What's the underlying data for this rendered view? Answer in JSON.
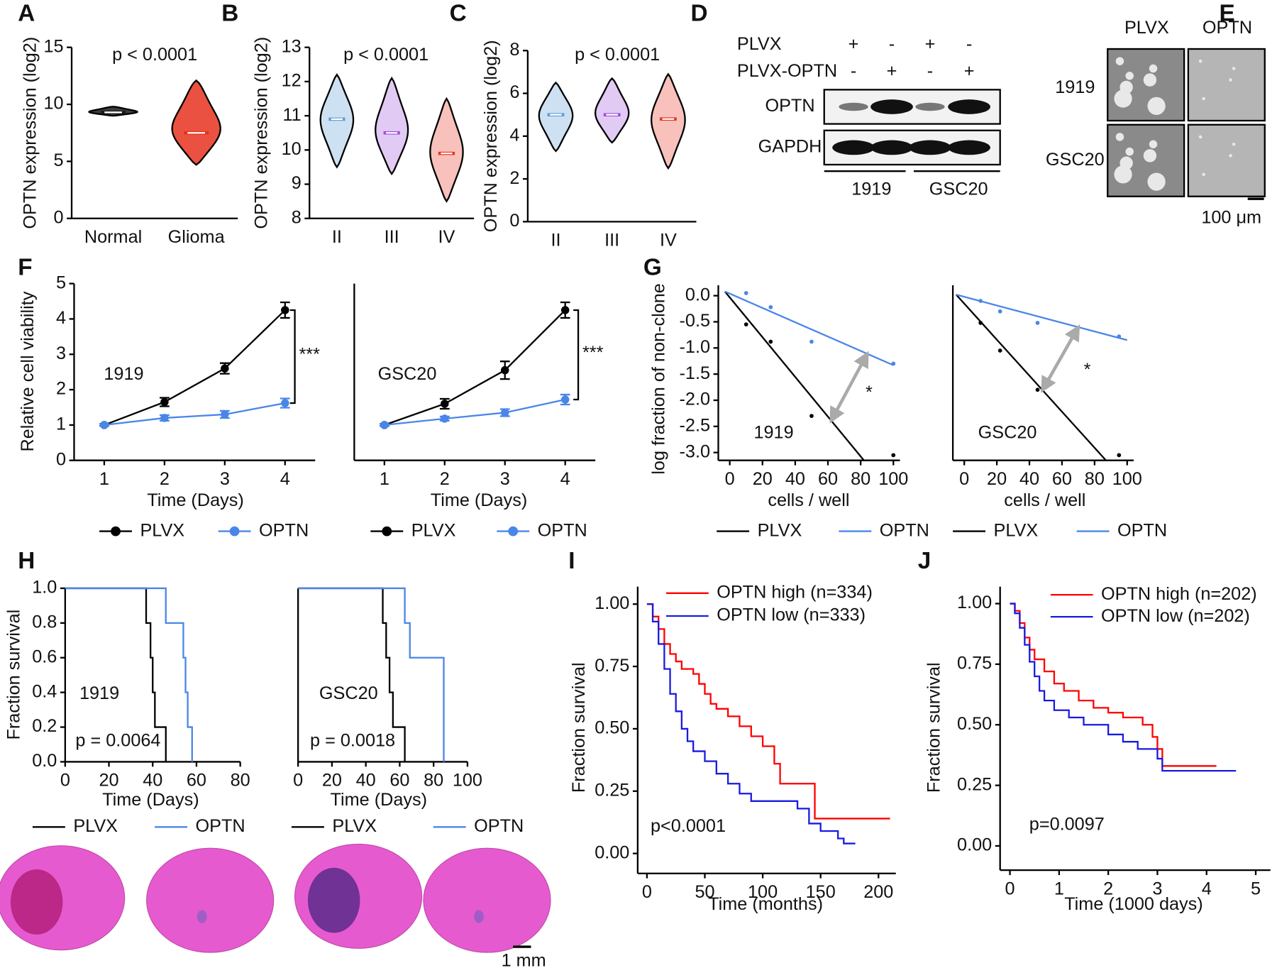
{
  "chart_data": [
    {
      "type": "violin",
      "panel": "A",
      "y_label": "OPTN expression (log2)",
      "p_value": "p < 0.0001",
      "categories": [
        "Normal",
        "Glioma"
      ],
      "min": [
        9.0,
        4.7
      ],
      "median": [
        9.3,
        7.5
      ],
      "max": [
        9.8,
        12.1
      ],
      "colors": [
        "#1a1a1a",
        "#e8321e"
      ],
      "ylim": [
        0,
        15
      ],
      "yticks": [
        0,
        5,
        10,
        15
      ]
    },
    {
      "type": "violin",
      "panel": "B",
      "y_label": "OPTN expression (log2)",
      "p_value": "p < 0.0001",
      "categories": [
        "II",
        "III",
        "IV"
      ],
      "min": [
        9.5,
        9.3,
        8.5
      ],
      "median": [
        10.9,
        10.5,
        9.9
      ],
      "max": [
        12.2,
        12.1,
        11.5
      ],
      "colors": [
        "#5b9bd5",
        "#9b4fd9",
        "#e8321e"
      ],
      "ylim": [
        8,
        13
      ],
      "yticks": [
        8,
        9,
        10,
        11,
        12,
        13
      ]
    },
    {
      "type": "violin",
      "panel": "C",
      "y_label": "OPTN expression (log2)",
      "p_value": "p < 0.0001",
      "categories": [
        "II",
        "III",
        "IV"
      ],
      "min": [
        3.3,
        3.7,
        2.5
      ],
      "median": [
        5.0,
        5.0,
        4.8
      ],
      "max": [
        6.5,
        6.7,
        6.9
      ],
      "colors": [
        "#5b9bd5",
        "#9b4fd9",
        "#e8321e"
      ],
      "ylim": [
        0,
        8
      ],
      "yticks": [
        0,
        2,
        4,
        6,
        8
      ]
    },
    {
      "type": "line",
      "panel": "F",
      "y_label": "Relative cell viability",
      "x_label": "Time (Days)",
      "label": "1919",
      "significance": "***",
      "x": [
        1,
        2,
        3,
        4
      ],
      "xlim": [
        0.5,
        4.5
      ],
      "xticks": [
        1,
        2,
        3,
        4
      ],
      "ylim": [
        0,
        5
      ],
      "yticks": [
        0,
        1,
        2,
        3,
        4,
        5
      ],
      "series": [
        {
          "name": "PLVX",
          "color": "#000000",
          "values": [
            1,
            1.65,
            2.6,
            4.25
          ],
          "errors": [
            0.03,
            0.12,
            0.15,
            0.22
          ]
        },
        {
          "name": "OPTN",
          "color": "#4a86e8",
          "values": [
            1,
            1.2,
            1.3,
            1.62
          ],
          "errors": [
            0.03,
            0.08,
            0.1,
            0.13
          ]
        }
      ]
    },
    {
      "type": "line",
      "x_label": "Time (Days)",
      "label": "GSC20",
      "significance": "***",
      "x": [
        1,
        2,
        3,
        4
      ],
      "xlim": [
        0.5,
        4.5
      ],
      "xticks": [
        1,
        2,
        3,
        4
      ],
      "ylim": [
        0,
        5
      ],
      "series": [
        {
          "name": "PLVX",
          "color": "#000000",
          "values": [
            1,
            1.6,
            2.55,
            4.25
          ],
          "errors": [
            0.03,
            0.14,
            0.25,
            0.22
          ]
        },
        {
          "name": "OPTN",
          "color": "#4a86e8",
          "values": [
            1,
            1.18,
            1.35,
            1.72
          ],
          "errors": [
            0.03,
            0.06,
            0.1,
            0.14
          ]
        }
      ]
    },
    {
      "type": "scatter",
      "panel": "G",
      "y_label": "log fraction of non-clone",
      "x_label": "cells / well",
      "label": "1919",
      "significance": "*",
      "xlim": [
        -7,
        104
      ],
      "xticks": [
        0,
        20,
        40,
        60,
        80,
        100
      ],
      "ylim": [
        -3.15,
        0.2
      ],
      "yticks": [
        {
          "value": 0,
          "label": "0.0"
        },
        -0.5,
        {
          "value": -1,
          "label": "-1.0"
        },
        -1.5,
        {
          "value": -2,
          "label": "-2.0"
        },
        -2.5,
        {
          "value": -3,
          "label": "-3.0"
        }
      ],
      "series": [
        {
          "name": "PLVX",
          "color": "#000000",
          "x": [
            10,
            25,
            50,
            100
          ],
          "values": [
            -0.55,
            -0.88,
            -2.3,
            -3.05
          ],
          "fit_x": [
            -3,
            82
          ],
          "fit_values": [
            0.08,
            -3.15
          ]
        },
        {
          "name": "OPTN",
          "color": "#4a86e8",
          "x": [
            10,
            25,
            50,
            100
          ],
          "values": [
            0.05,
            -0.22,
            -0.88,
            -1.3
          ],
          "fit_x": [
            -3,
            100
          ],
          "fit_values": [
            0.08,
            -1.33
          ]
        }
      ]
    },
    {
      "type": "scatter",
      "x_label": "cells / well",
      "label": "GSC20",
      "significance": "*",
      "xlim": [
        -7,
        104
      ],
      "xticks": [
        0,
        20,
        40,
        60,
        80,
        100
      ],
      "ylim": [
        -3.15,
        0.2
      ],
      "series": [
        {
          "name": "PLVX",
          "color": "#000000",
          "x": [
            10,
            22,
            45,
            95
          ],
          "values": [
            -0.52,
            -1.05,
            -1.8,
            -3.05
          ],
          "fit_x": [
            -5,
            87
          ],
          "fit_values": [
            0.02,
            -3.15
          ]
        },
        {
          "name": "OPTN",
          "color": "#4a86e8",
          "x": [
            10,
            22,
            45,
            95
          ],
          "values": [
            -0.1,
            -0.3,
            -0.52,
            -0.78
          ],
          "fit_x": [
            -5,
            100
          ],
          "fit_values": [
            0.02,
            -0.85
          ]
        }
      ]
    },
    {
      "type": "km",
      "panel": "H",
      "y_label": "Fraction survival",
      "x_label": "Time (Days)",
      "label": "1919",
      "p_value": "p = 0.0064",
      "xlim": [
        0,
        80
      ],
      "xticks": [
        0,
        20,
        40,
        60,
        80
      ],
      "ylim": [
        0,
        1
      ],
      "yticks": [
        {
          "value": 0,
          "label": "0.0"
        },
        0.2,
        0.4,
        0.6,
        0.8,
        {
          "value": 1,
          "label": "1.0"
        }
      ],
      "series": [
        {
          "name": "PLVX",
          "color": "#000000",
          "x": [
            0,
            37,
            39,
            40,
            41,
            46
          ],
          "values": [
            1,
            0.8,
            0.6,
            0.4,
            0.2,
            0
          ]
        },
        {
          "name": "OPTN",
          "color": "#4a86e8",
          "x": [
            0,
            46,
            54,
            55,
            56,
            58
          ],
          "values": [
            1,
            0.8,
            0.6,
            0.4,
            0.2,
            0
          ]
        }
      ]
    },
    {
      "type": "km",
      "x_label": "Time (Days)",
      "label": "GSC20",
      "p_value": "p = 0.0018",
      "xlim": [
        0,
        100
      ],
      "xticks": [
        0,
        20,
        40,
        60,
        80,
        100
      ],
      "ylim": [
        0,
        1
      ],
      "series": [
        {
          "name": "PLVX",
          "color": "#000000",
          "x": [
            0,
            50,
            52,
            54,
            56,
            63
          ],
          "values": [
            1,
            0.8,
            0.6,
            0.4,
            0.2,
            0
          ]
        },
        {
          "name": "OPTN",
          "color": "#4a86e8",
          "x": [
            0,
            63,
            66,
            86
          ],
          "values": [
            1,
            0.8,
            0.6,
            0
          ]
        }
      ]
    },
    {
      "type": "km",
      "panel": "I",
      "y_label": "Fraction survival",
      "x_label": "Time (months)",
      "p_value": "p<0.0001",
      "xlim": [
        -8,
        215
      ],
      "xticks": [
        0,
        50,
        100,
        150,
        200
      ],
      "ylim": [
        -0.08,
        1.07
      ],
      "yticks": [
        {
          "value": 0,
          "label": "0.00"
        },
        0.25,
        {
          "value": 0.5,
          "label": "0.50"
        },
        0.75,
        {
          "value": 1,
          "label": "1.00"
        }
      ],
      "series": [
        {
          "name": "OPTN high (n=334)",
          "color": "#ff0000",
          "x": [
            0,
            5,
            10,
            15,
            20,
            25,
            30,
            40,
            45,
            50,
            55,
            60,
            70,
            80,
            90,
            100,
            110,
            115,
            145,
            210
          ],
          "values": [
            1,
            0.95,
            0.9,
            0.84,
            0.8,
            0.77,
            0.74,
            0.72,
            0.68,
            0.64,
            0.6,
            0.58,
            0.55,
            0.51,
            0.47,
            0.43,
            0.36,
            0.28,
            0.14,
            0.14
          ]
        },
        {
          "name": "OPTN low (n=333)",
          "color": "#1a1adf",
          "x": [
            0,
            5,
            10,
            15,
            20,
            25,
            30,
            35,
            40,
            50,
            60,
            70,
            80,
            90,
            110,
            130,
            140,
            150,
            165,
            170,
            180
          ],
          "values": [
            1,
            0.93,
            0.84,
            0.74,
            0.64,
            0.57,
            0.5,
            0.45,
            0.41,
            0.37,
            0.32,
            0.28,
            0.24,
            0.21,
            0.21,
            0.18,
            0.12,
            0.09,
            0.06,
            0.04,
            0.04
          ]
        }
      ]
    },
    {
      "type": "km",
      "panel": "J",
      "y_label": "Fraction survival",
      "x_label": "Time (1000 days)",
      "p_value": "p=0.0097",
      "xlim": [
        -0.2,
        5.3
      ],
      "xticks": [
        0,
        1,
        2,
        3,
        4,
        5
      ],
      "ylim": [
        -0.1,
        1.07
      ],
      "yticks": [
        {
          "value": 0,
          "label": "0.00"
        },
        0.25,
        {
          "value": 0.5,
          "label": "0.50"
        },
        0.75,
        {
          "value": 1,
          "label": "1.00"
        }
      ],
      "series": [
        {
          "name": "OPTN high (n=202)",
          "color": "#ff0000",
          "x": [
            0,
            0.1,
            0.2,
            0.3,
            0.4,
            0.5,
            0.7,
            0.9,
            1.1,
            1.4,
            1.7,
            2.0,
            2.3,
            2.7,
            2.9,
            3.0,
            3.1,
            3.5,
            4.2
          ],
          "values": [
            1,
            0.97,
            0.92,
            0.86,
            0.81,
            0.77,
            0.72,
            0.67,
            0.64,
            0.6,
            0.57,
            0.55,
            0.53,
            0.5,
            0.45,
            0.4,
            0.33,
            0.33,
            0.33
          ]
        },
        {
          "name": "OPTN low (n=202)",
          "color": "#1a1adf",
          "x": [
            0,
            0.1,
            0.2,
            0.3,
            0.4,
            0.5,
            0.6,
            0.7,
            0.9,
            1.2,
            1.5,
            2.0,
            2.3,
            2.6,
            3.0,
            3.1,
            4.6
          ],
          "values": [
            1,
            0.96,
            0.9,
            0.83,
            0.76,
            0.7,
            0.64,
            0.6,
            0.56,
            0.53,
            0.5,
            0.46,
            0.43,
            0.4,
            0.36,
            0.31,
            0.31
          ]
        }
      ]
    }
  ],
  "blot": {
    "panel": "D",
    "treatments": [
      "PLVX",
      "PLVX-OPTN"
    ],
    "signs": [
      [
        "+",
        "-",
        "+",
        "-"
      ],
      [
        "-",
        "+",
        "-",
        "+"
      ]
    ],
    "proteins": [
      "OPTN",
      "GAPDH"
    ],
    "cell_lines": [
      "1919",
      "GSC20"
    ]
  },
  "micrographs": {
    "panel": "E",
    "columns": [
      "PLVX",
      "OPTN"
    ],
    "rows": [
      "1919",
      "GSC20"
    ],
    "scale_bar": "100 μm"
  },
  "histology": {
    "scale_bar": "1 mm"
  }
}
